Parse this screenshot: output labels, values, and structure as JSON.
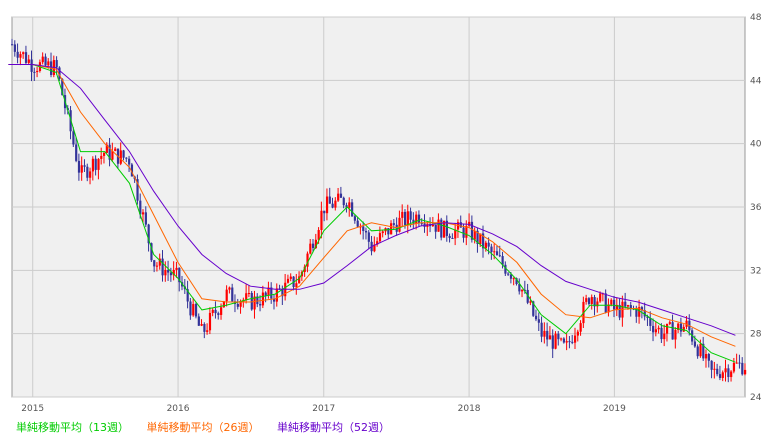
{
  "chart_data": {
    "type": "candlestick",
    "title": "",
    "xlabel": "",
    "ylabel": "",
    "ylim": [
      24,
      48
    ],
    "y_ticks": [
      "24",
      "28",
      "32",
      "36",
      "40",
      "44",
      "48"
    ],
    "x_ticks": [
      "2015",
      "2016",
      "2017",
      "2018",
      "2019"
    ],
    "x": [
      "2014-11",
      "2015-01",
      "2015-03",
      "2015-05",
      "2015-07",
      "2015-09",
      "2015-11",
      "2016-01",
      "2016-03",
      "2016-05",
      "2016-07",
      "2016-09",
      "2016-11",
      "2017-01",
      "2017-03",
      "2017-05",
      "2017-07",
      "2017-09",
      "2017-11",
      "2018-01",
      "2018-03",
      "2018-05",
      "2018-07",
      "2018-09",
      "2018-11",
      "2019-01",
      "2019-03",
      "2019-05",
      "2019-07",
      "2019-09",
      "2019-11"
    ],
    "series": [
      {
        "name": "price",
        "values": [
          46.5,
          45.0,
          44.8,
          38.0,
          39.5,
          39.0,
          32.5,
          31.5,
          28.0,
          30.5,
          30.0,
          30.5,
          31.5,
          36.0,
          36.5,
          33.5,
          35.0,
          35.5,
          34.5,
          34.5,
          33.0,
          31.5,
          28.0,
          27.0,
          30.5,
          29.5,
          29.5,
          28.0,
          28.5,
          25.5,
          26.0
        ]
      },
      {
        "name": "13w",
        "values": [
          45.0,
          45.0,
          44.5,
          39.5,
          39.5,
          37.5,
          33.0,
          31.5,
          29.5,
          29.8,
          30.2,
          30.5,
          31.5,
          34.5,
          36.0,
          34.5,
          34.6,
          35.2,
          34.8,
          34.2,
          33.0,
          31.4,
          29.2,
          28.0,
          29.8,
          29.8,
          29.5,
          28.5,
          28.2,
          26.8,
          26.2
        ]
      },
      {
        "name": "26w",
        "values": [
          45.0,
          45.0,
          44.7,
          42.0,
          40.0,
          38.5,
          35.5,
          32.5,
          30.2,
          30.0,
          30.0,
          30.2,
          31.0,
          32.8,
          34.5,
          35.0,
          34.7,
          35.0,
          35.0,
          34.7,
          33.8,
          32.5,
          30.5,
          29.2,
          29.0,
          29.5,
          29.6,
          29.0,
          28.6,
          27.8,
          27.2
        ]
      },
      {
        "name": "52w",
        "values": [
          45.0,
          45.0,
          44.8,
          43.5,
          41.5,
          39.5,
          37.0,
          34.8,
          33.0,
          31.8,
          31.0,
          30.8,
          30.8,
          31.2,
          32.3,
          33.5,
          34.2,
          34.8,
          35.0,
          34.9,
          34.3,
          33.5,
          32.3,
          31.3,
          30.8,
          30.3,
          30.0,
          29.5,
          29.0,
          28.5,
          27.9
        ]
      }
    ],
    "grid": true,
    "legend_position": "bottom-left"
  },
  "legend": {
    "ma13": "単純移動平均（13週）",
    "ma26": "単純移動平均（26週）",
    "ma52": "単純移動平均（52週）"
  },
  "colors": {
    "background": "#f0f0f0",
    "grid": "#cccccc",
    "up": "#ff0000",
    "down": "#333399",
    "ma13": "#00cc00",
    "ma26": "#ff6600",
    "ma52": "#6600cc"
  }
}
